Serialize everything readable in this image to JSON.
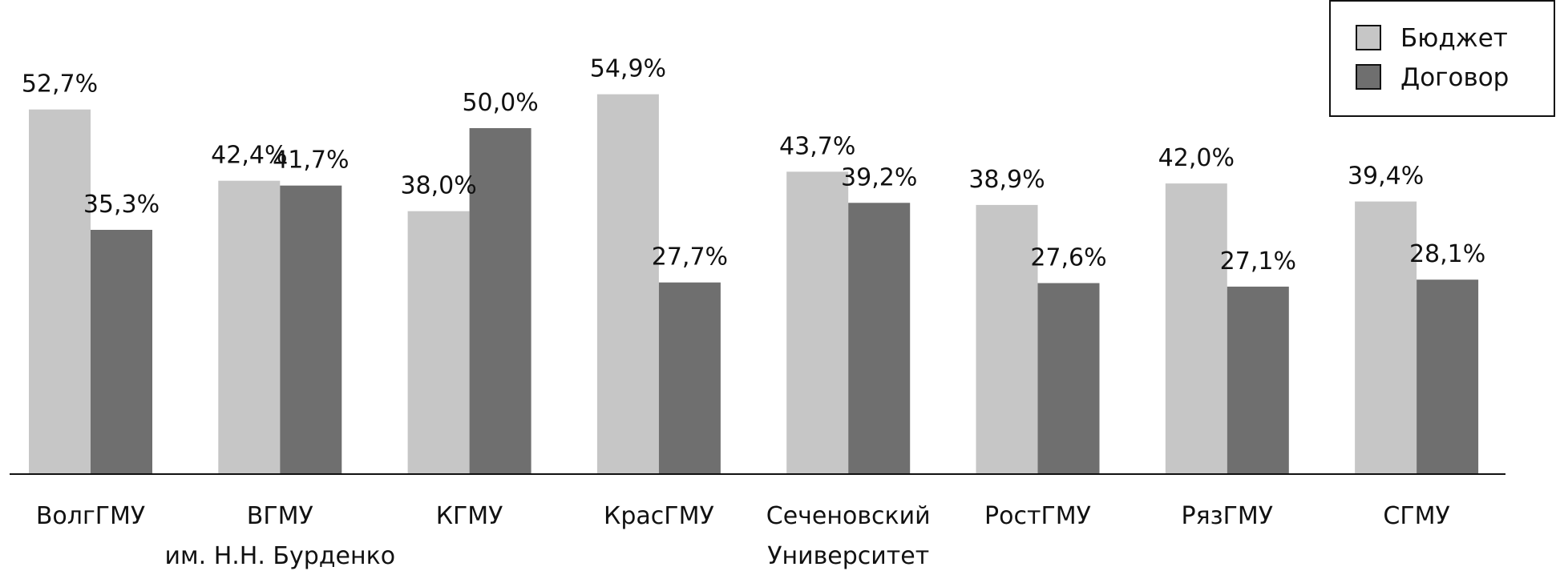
{
  "chart_data": {
    "type": "bar",
    "categories": [
      [
        "ВолгГМУ"
      ],
      [
        "ВГМУ",
        "им. Н.Н. Бурденко"
      ],
      [
        "КГМУ"
      ],
      [
        "КрасГМУ"
      ],
      [
        "Сеченовский",
        "Университет"
      ],
      [
        "РостГМУ"
      ],
      [
        "РязГМУ"
      ],
      [
        "СГМУ"
      ]
    ],
    "series": [
      {
        "name": "Бюджет",
        "color": "#c6c6c6",
        "values": [
          52.7,
          42.4,
          38.0,
          54.9,
          43.7,
          38.9,
          42.0,
          39.4
        ],
        "labels": [
          "52,7%",
          "42,4%",
          "38,0%",
          "54,9%",
          "43,7%",
          "38,9%",
          "42,0%",
          "39,4%"
        ]
      },
      {
        "name": "Договор",
        "color": "#6f6f6f",
        "values": [
          35.3,
          41.7,
          50.0,
          27.7,
          39.2,
          27.6,
          27.1,
          28.1
        ],
        "labels": [
          "35,3%",
          "41,7%",
          "50,0%",
          "27,7%",
          "39,2%",
          "27,6%",
          "27,1%",
          "28,1%"
        ]
      }
    ],
    "ylim": [
      0,
      60
    ],
    "grid": false,
    "legend": "top-right"
  }
}
